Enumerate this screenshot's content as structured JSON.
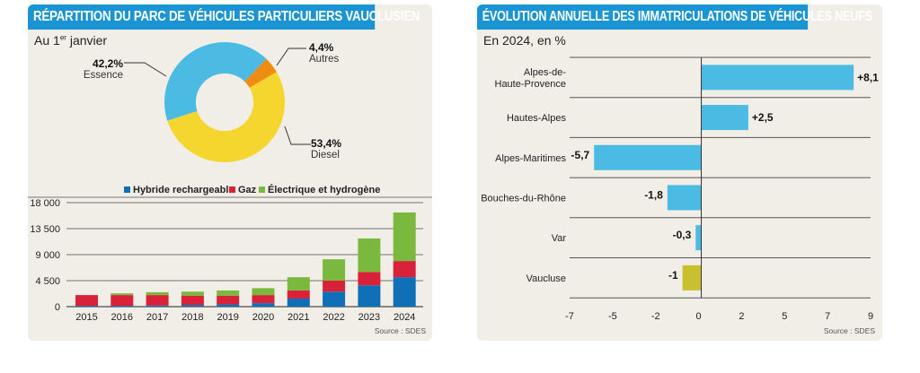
{
  "chart_data": [
    {
      "type": "pie",
      "variant": "donut",
      "title": "RÉPARTITION DU PARC DE VÉHICULES PARTICULIERS VAUCLUSIEN",
      "subtitle": "Au 1er janvier",
      "subtitle_main": "Au 1",
      "subtitle_sup": "er",
      "subtitle_tail": " janvier",
      "slices": [
        {
          "label": "Essence",
          "value": 42.2,
          "value_label": "42,2%",
          "color": "#4bbbe3"
        },
        {
          "label": "Autres",
          "value": 4.4,
          "value_label": "4,4%",
          "color": "#ef8c14"
        },
        {
          "label": "Diesel",
          "value": 53.4,
          "value_label": "53,4%",
          "color": "#f5d62e"
        }
      ]
    },
    {
      "type": "bar",
      "variant": "stacked",
      "title": "",
      "xlabel": "",
      "ylabel": "",
      "categories": [
        "2015",
        "2016",
        "2017",
        "2018",
        "2019",
        "2020",
        "2021",
        "2022",
        "2023",
        "2024"
      ],
      "series": [
        {
          "name": "Hybride rechargeable",
          "color": "#0f6fb7",
          "values": [
            150,
            150,
            200,
            300,
            400,
            600,
            1400,
            2600,
            3700,
            5100
          ]
        },
        {
          "name": "Gaz",
          "color": "#d9213a",
          "values": [
            1850,
            1850,
            1800,
            1600,
            1500,
            1400,
            1400,
            1900,
            2300,
            2800
          ]
        },
        {
          "name": "Électrique et hydrogène",
          "color": "#7ab93d",
          "values": [
            0,
            300,
            500,
            700,
            900,
            1200,
            2300,
            3700,
            5800,
            8400
          ]
        }
      ],
      "ylim": [
        0,
        18000
      ],
      "yticks": [
        0,
        4500,
        9000,
        13500,
        18000
      ],
      "ytick_labels": [
        "0",
        "4 500",
        "9 000",
        "13 500",
        "18 000"
      ],
      "grid": true,
      "legend": "top",
      "source": "Source : SDES"
    },
    {
      "type": "bar",
      "orientation": "horizontal",
      "title": "ÉVOLUTION ANNUELLE DES IMMATRICULATIONS DE VÉHICULES NEUFS",
      "subtitle": "En 2024, en %",
      "categories": [
        "Alpes-de-Haute-Provence",
        "Hautes-Alpes",
        "Alpes-Maritimes",
        "Bouches-du-Rhône",
        "Var",
        "Vaucluse"
      ],
      "category_lines": [
        [
          "Alpes-de-",
          "Haute-Provence"
        ],
        [
          "Hautes-Alpes"
        ],
        [
          "Alpes-Maritimes"
        ],
        [
          "Bouches-du-Rhône"
        ],
        [
          "Var"
        ],
        [
          "Vaucluse"
        ]
      ],
      "values": [
        8.1,
        2.5,
        -5.7,
        -1.8,
        -0.3,
        -1
      ],
      "value_labels": [
        "+8,1",
        "+2,5",
        "-5,7",
        "-1,8",
        "-0,3",
        "-1"
      ],
      "colors": [
        "#4bbbe3",
        "#4bbbe3",
        "#4bbbe3",
        "#4bbbe3",
        "#4bbbe3",
        "#c9c030"
      ],
      "xlim": [
        -7,
        9
      ],
      "xtick_labels": [
        "-7",
        "-5",
        "-2",
        "0",
        "2",
        "5",
        "7",
        "9"
      ],
      "grid": true,
      "source": "Source : SDES"
    }
  ]
}
